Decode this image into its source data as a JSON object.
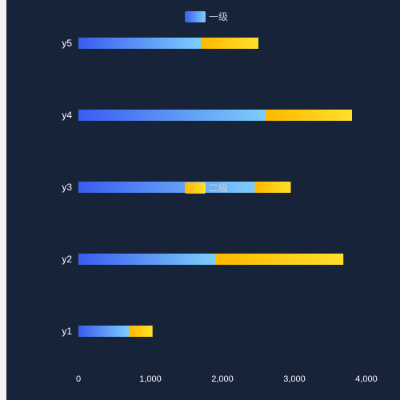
{
  "chart_data": {
    "type": "bar",
    "orientation": "horizontal",
    "stacked": true,
    "categories": [
      "y1",
      "y2",
      "y3",
      "y4",
      "y5"
    ],
    "series": [
      {
        "name": "一级",
        "values": [
          700,
          1900,
          2450,
          2600,
          1700
        ],
        "gradient": [
          "#3a5cf0",
          "#7dcdfc"
        ]
      },
      {
        "name": "二级",
        "values": [
          330,
          1780,
          500,
          1200,
          800
        ],
        "gradient": [
          "#ffb800",
          "#ffe02a"
        ]
      }
    ],
    "x_ticks": [
      "0",
      "1,000",
      "2,000",
      "3,000",
      "4,000"
    ],
    "xlim": [
      0,
      4000
    ],
    "legend_placement": "top-center",
    "background": "#162338"
  }
}
